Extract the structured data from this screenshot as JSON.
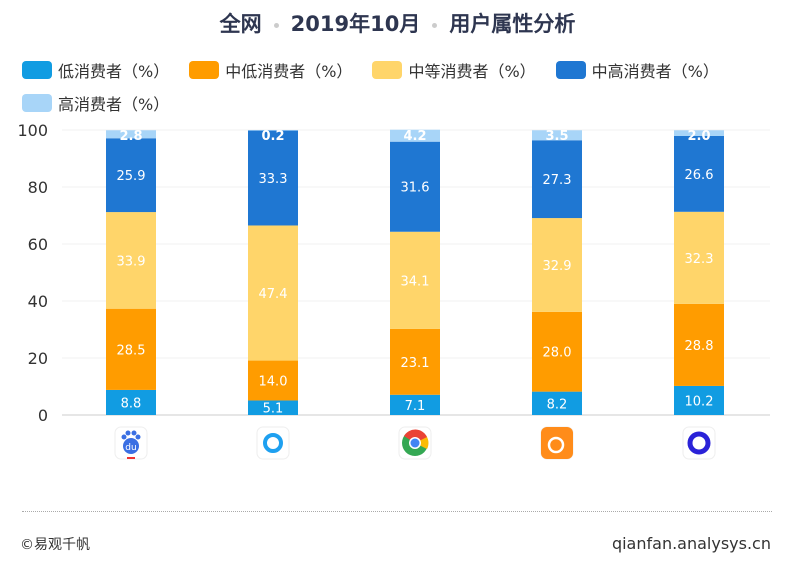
{
  "title_parts": [
    "全网",
    "2019年10月",
    "用户属性分析"
  ],
  "chart_data": {
    "type": "bar",
    "stacked": true,
    "categories": [
      "baidu-app-icon",
      "qq-browser-icon",
      "chrome-icon",
      "uc-browser-icon",
      "quark-icon"
    ],
    "ylim": [
      0,
      100
    ],
    "yticks": [
      0,
      20,
      40,
      60,
      80,
      100
    ],
    "grid": true,
    "legend_position": "top",
    "series": [
      {
        "name": "低消费者（%）",
        "color": "#119ce2",
        "values": [
          8.8,
          5.1,
          7.1,
          8.2,
          10.2
        ]
      },
      {
        "name": "中低消费者（%）",
        "color": "#ff9c00",
        "values": [
          28.5,
          14.0,
          23.1,
          28.0,
          28.8
        ]
      },
      {
        "name": "中等消费者（%）",
        "color": "#ffd56a",
        "values": [
          33.9,
          47.4,
          34.1,
          32.9,
          32.3
        ]
      },
      {
        "name": "中高消费者（%）",
        "color": "#1f77d2",
        "values": [
          25.9,
          33.3,
          31.6,
          27.3,
          26.6
        ]
      },
      {
        "name": "高消费者（%）",
        "color": "#a8d5f8",
        "values": [
          2.8,
          0.2,
          4.2,
          3.5,
          2.0
        ]
      }
    ]
  },
  "footer": {
    "copyright": "©易观千帆",
    "site": "qianfan.analysys.cn"
  }
}
